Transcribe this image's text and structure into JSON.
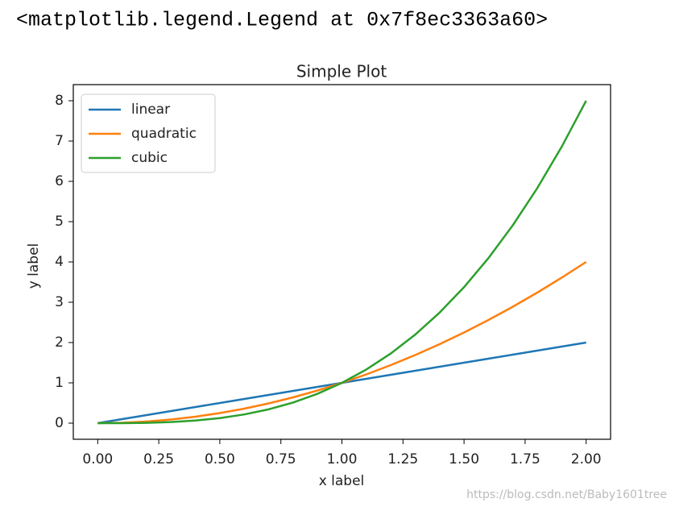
{
  "output_text": "<matplotlib.legend.Legend at 0x7f8ec3363a60>",
  "watermark": "https://blog.csdn.net/Baby1601tree",
  "chart_data": {
    "type": "line",
    "title": "Simple Plot",
    "x_label": "x label",
    "y_label": "y label",
    "x": [
      0,
      0.1,
      0.2,
      0.3,
      0.4,
      0.5,
      0.6,
      0.7,
      0.8,
      0.9,
      1.0,
      1.1,
      1.2,
      1.3,
      1.4,
      1.5,
      1.6,
      1.7,
      1.8,
      1.9,
      2.0
    ],
    "series": [
      {
        "name": "linear",
        "color": "#1f77b4",
        "values": [
          0,
          0.1,
          0.2,
          0.3,
          0.4,
          0.5,
          0.6,
          0.7,
          0.8,
          0.9,
          1.0,
          1.1,
          1.2,
          1.3,
          1.4,
          1.5,
          1.6,
          1.7,
          1.8,
          1.9,
          2.0
        ]
      },
      {
        "name": "quadratic",
        "color": "#ff7f0e",
        "values": [
          0,
          0.01,
          0.04,
          0.09,
          0.16,
          0.25,
          0.36,
          0.49,
          0.64,
          0.81,
          1,
          1.21,
          1.44,
          1.69,
          1.96,
          2.25,
          2.56,
          2.89,
          3.24,
          3.61,
          4
        ]
      },
      {
        "name": "cubic",
        "color": "#2ca02c",
        "values": [
          0,
          0.001,
          0.008,
          0.027,
          0.064,
          0.125,
          0.216,
          0.343,
          0.512,
          0.729,
          1,
          1.331,
          1.728,
          2.197,
          2.744,
          3.375,
          4.096,
          4.913,
          5.832,
          6.859,
          8
        ]
      }
    ],
    "xlim": [
      -0.1,
      2.1
    ],
    "xticks": [
      {
        "value": 0,
        "label": "0.00"
      },
      {
        "value": 0.25,
        "label": "0.25"
      },
      {
        "value": 0.5,
        "label": "0.50"
      },
      {
        "value": 0.75,
        "label": "0.75"
      },
      {
        "value": 1,
        "label": "1.00"
      },
      {
        "value": 1.25,
        "label": "1.25"
      },
      {
        "value": 1.5,
        "label": "1.50"
      },
      {
        "value": 1.75,
        "label": "1.75"
      },
      {
        "value": 2,
        "label": "2.00"
      }
    ],
    "ylim": [
      -0.4,
      8.4
    ],
    "yticks": [
      0,
      1,
      2,
      3,
      4,
      5,
      6,
      7,
      8
    ],
    "legend": "upper left"
  }
}
